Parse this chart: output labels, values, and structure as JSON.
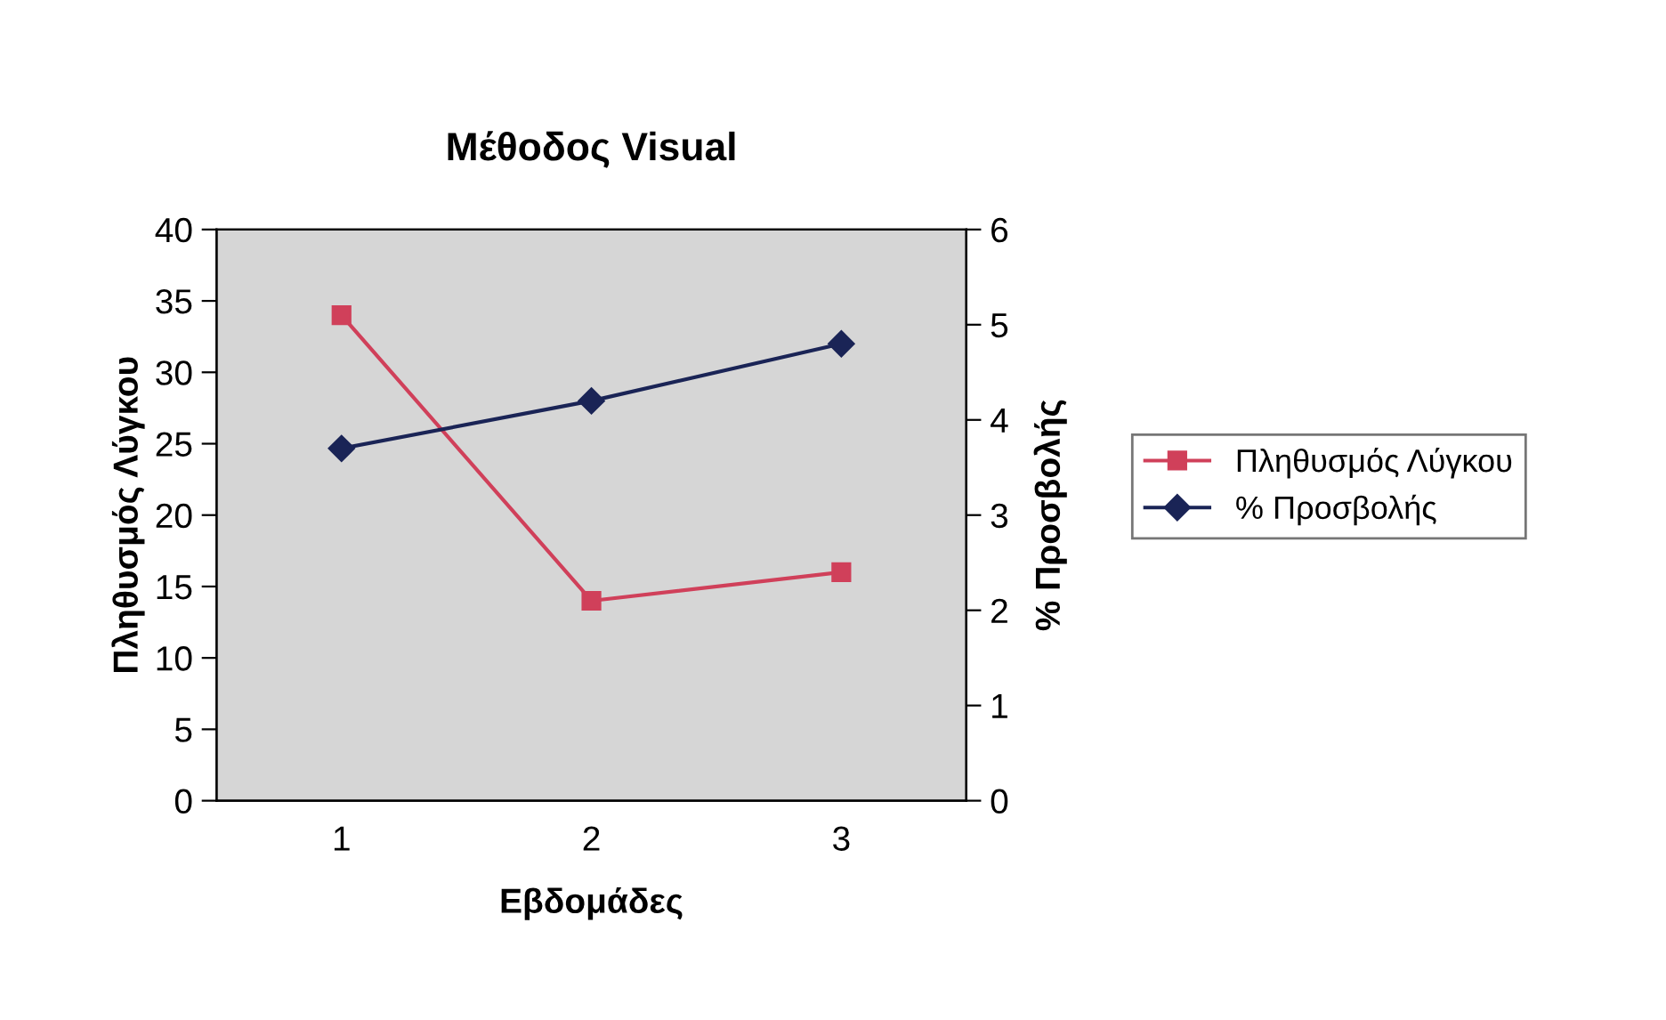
{
  "chart_data": {
    "type": "line",
    "title": "Μέθοδος Visual",
    "xlabel": "Εβδομάδες",
    "ylabel": "Πληθυσμός Λύγκου",
    "y2label": "% Προσβολής",
    "categories": [
      "1",
      "2",
      "3"
    ],
    "series": [
      {
        "name": "Πληθυσμός Λύγκου",
        "color": "#d0405a",
        "marker": "square",
        "values": [
          34,
          14,
          16
        ]
      },
      {
        "name": "% Προσβολής",
        "color": "#1a2456",
        "marker": "diamond",
        "axis": "y2",
        "values": [
          3.7,
          4.2,
          4.8
        ]
      }
    ],
    "ylim": [
      0,
      40
    ],
    "yticks": [
      0,
      5,
      10,
      15,
      20,
      25,
      30,
      35,
      40
    ],
    "y2lim": [
      0,
      6
    ],
    "y2ticks": [
      0,
      1,
      2,
      3,
      4,
      5,
      6
    ],
    "grid": false,
    "legend": "right",
    "line_style": "solid"
  }
}
